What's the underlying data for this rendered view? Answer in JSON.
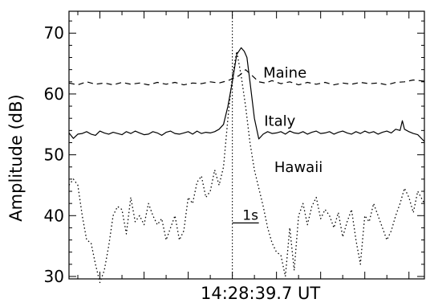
{
  "chart_data": {
    "type": "line",
    "xlabel": "14:28:39.7 UT",
    "ylabel": "Amplitude (dB)",
    "xlim": [
      -3.7,
      4.35
    ],
    "ylim": [
      29.6,
      73.6
    ],
    "yticks": [
      30,
      40,
      50,
      60,
      70
    ],
    "event_time": 0,
    "scale_bar": {
      "label": "1s",
      "x_start": 0,
      "x_end": 0.6,
      "y": 38.8
    },
    "colors": {
      "axes": "#000000",
      "series": "#000000"
    },
    "series": [
      {
        "name": "Maine",
        "dash": "dashed",
        "label_at": [
          0.7,
          62.7
        ],
        "x": [
          -3.7,
          -3.5,
          -3.3,
          -3.1,
          -2.9,
          -2.7,
          -2.5,
          -2.3,
          -2.1,
          -1.9,
          -1.7,
          -1.5,
          -1.3,
          -1.1,
          -0.9,
          -0.7,
          -0.5,
          -0.3,
          -0.1,
          0.0,
          0.15,
          0.3,
          0.45,
          0.6,
          0.75,
          0.9,
          1.1,
          1.3,
          1.5,
          1.7,
          1.9,
          2.1,
          2.3,
          2.5,
          2.7,
          2.9,
          3.1,
          3.3,
          3.5,
          3.7,
          3.9,
          4.1,
          4.35
        ],
        "values": [
          61.8,
          61.5,
          62.0,
          61.6,
          61.8,
          61.5,
          61.9,
          61.6,
          61.8,
          61.5,
          61.9,
          61.6,
          61.9,
          61.5,
          61.8,
          61.7,
          62.0,
          61.8,
          62.2,
          62.5,
          63.0,
          64.0,
          63.0,
          62.0,
          61.8,
          62.2,
          61.7,
          62.0,
          61.5,
          61.9,
          61.6,
          61.9,
          61.5,
          61.8,
          61.6,
          61.9,
          61.7,
          61.8,
          61.5,
          61.9,
          62.0,
          62.3,
          62.1
        ]
      },
      {
        "name": "Italy",
        "dash": "solid",
        "label_at": [
          0.72,
          54.8
        ],
        "x": [
          -3.7,
          -3.6,
          -3.5,
          -3.4,
          -3.3,
          -3.2,
          -3.1,
          -3.0,
          -2.9,
          -2.8,
          -2.7,
          -2.6,
          -2.5,
          -2.4,
          -2.3,
          -2.2,
          -2.1,
          -2.0,
          -1.9,
          -1.8,
          -1.7,
          -1.6,
          -1.5,
          -1.4,
          -1.3,
          -1.2,
          -1.1,
          -1.0,
          -0.9,
          -0.8,
          -0.7,
          -0.6,
          -0.5,
          -0.4,
          -0.3,
          -0.2,
          -0.1,
          0.0,
          0.1,
          0.2,
          0.27,
          0.33,
          0.4,
          0.5,
          0.6,
          0.7,
          0.8,
          0.9,
          1.0,
          1.1,
          1.2,
          1.3,
          1.4,
          1.5,
          1.6,
          1.7,
          1.8,
          1.9,
          2.0,
          2.1,
          2.2,
          2.3,
          2.4,
          2.5,
          2.6,
          2.7,
          2.8,
          2.9,
          3.0,
          3.1,
          3.2,
          3.3,
          3.4,
          3.5,
          3.6,
          3.7,
          3.8,
          3.85,
          3.9,
          4.0,
          4.1,
          4.2,
          4.35
        ],
        "values": [
          53.6,
          52.7,
          53.4,
          53.5,
          53.8,
          53.4,
          53.2,
          53.9,
          53.6,
          53.4,
          53.7,
          53.5,
          53.3,
          53.8,
          53.5,
          53.9,
          53.6,
          53.3,
          53.4,
          53.8,
          53.6,
          53.2,
          53.7,
          53.9,
          53.5,
          53.4,
          53.6,
          53.8,
          53.4,
          53.9,
          53.5,
          53.7,
          53.6,
          53.8,
          54.2,
          55.0,
          58.0,
          62.0,
          66.5,
          67.6,
          67.0,
          66.0,
          62.0,
          56.0,
          52.6,
          53.4,
          53.8,
          53.5,
          53.6,
          53.8,
          53.4,
          53.9,
          53.6,
          53.5,
          53.8,
          53.4,
          53.7,
          53.9,
          53.5,
          53.6,
          53.8,
          53.4,
          53.7,
          53.9,
          53.6,
          53.4,
          53.8,
          53.5,
          53.9,
          53.6,
          53.8,
          53.4,
          53.7,
          53.9,
          53.6,
          54.2,
          54.0,
          55.6,
          54.2,
          53.8,
          53.5,
          53.3,
          52.2
        ]
      },
      {
        "name": "Hawaii",
        "dash": "dotted",
        "label_at": [
          0.95,
          47.2
        ],
        "x": [
          -3.7,
          -3.6,
          -3.5,
          -3.4,
          -3.3,
          -3.2,
          -3.1,
          -3.0,
          -2.9,
          -2.8,
          -2.7,
          -2.6,
          -2.5,
          -2.4,
          -2.3,
          -2.2,
          -2.1,
          -2.0,
          -1.9,
          -1.8,
          -1.7,
          -1.6,
          -1.5,
          -1.4,
          -1.3,
          -1.2,
          -1.1,
          -1.0,
          -0.9,
          -0.8,
          -0.7,
          -0.6,
          -0.5,
          -0.4,
          -0.3,
          -0.2,
          -0.1,
          0.0,
          0.1,
          0.2,
          0.3,
          0.4,
          0.5,
          0.6,
          0.7,
          0.8,
          0.9,
          1.0,
          1.1,
          1.2,
          1.3,
          1.4,
          1.5,
          1.6,
          1.7,
          1.8,
          1.9,
          2.0,
          2.1,
          2.2,
          2.3,
          2.4,
          2.5,
          2.6,
          2.7,
          2.8,
          2.9,
          3.0,
          3.1,
          3.2,
          3.3,
          3.4,
          3.5,
          3.6,
          3.7,
          3.8,
          3.9,
          4.0,
          4.1,
          4.2,
          4.35
        ],
        "values": [
          45.0,
          46.0,
          45.0,
          40.0,
          36.0,
          35.5,
          32.0,
          29.0,
          31.0,
          35.0,
          40.0,
          41.5,
          41.0,
          37.0,
          43.0,
          39.0,
          40.0,
          38.5,
          42.0,
          40.0,
          38.5,
          39.5,
          36.0,
          38.0,
          40.0,
          36.0,
          37.5,
          43.0,
          42.0,
          45.5,
          46.5,
          43.0,
          44.0,
          47.5,
          45.0,
          48.0,
          56.0,
          63.0,
          67.0,
          63.0,
          58.0,
          52.0,
          47.5,
          44.5,
          41.5,
          38.0,
          35.5,
          34.0,
          33.5,
          30.0,
          38.0,
          31.0,
          40.0,
          42.0,
          38.5,
          41.5,
          43.0,
          39.5,
          41.0,
          40.0,
          38.0,
          40.5,
          36.5,
          39.0,
          41.0,
          36.0,
          32.0,
          40.0,
          39.0,
          42.0,
          40.0,
          38.0,
          36.0,
          37.5,
          40.0,
          42.0,
          44.5,
          43.0,
          40.5,
          44.0,
          42.0
        ]
      }
    ]
  }
}
